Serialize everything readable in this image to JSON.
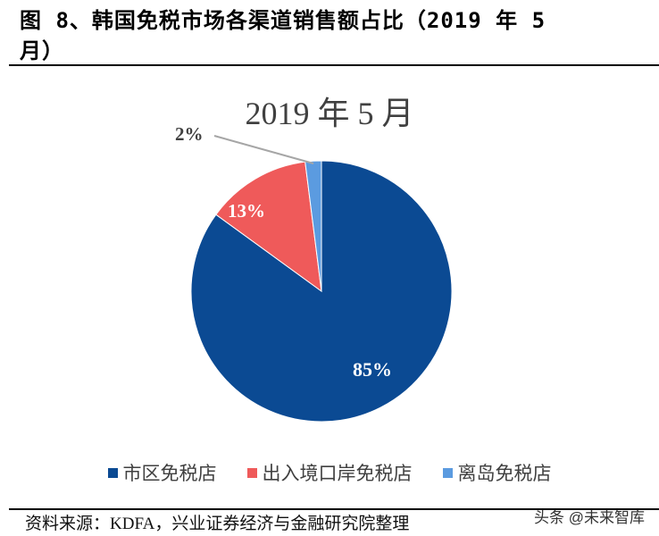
{
  "figure": {
    "title_line1": "图 8、韩国免税市场各渠道销售额占比（2019 年 5",
    "title_line2": "月）",
    "source": "资料来源：KDFA，兴业证券经济与金融研究院整理",
    "watermark": "头条 @未来智库"
  },
  "chart_data": {
    "type": "pie",
    "title": "2019 年 5 月",
    "categories": [
      "市区免税店",
      "出入境口岸免税店",
      "离岛免税店"
    ],
    "values": [
      85,
      13,
      2
    ],
    "unit": "%",
    "labels": [
      "85%",
      "13%",
      "2%"
    ],
    "colors": [
      "#0b4a93",
      "#ef5a5a",
      "#5b9be0"
    ],
    "legend_position": "bottom"
  },
  "legend": [
    {
      "label": "市区免税店",
      "color": "#0b4a93"
    },
    {
      "label": "出入境口岸免税店",
      "color": "#ef5a5a"
    },
    {
      "label": "离岛免税店",
      "color": "#5b9be0"
    }
  ]
}
